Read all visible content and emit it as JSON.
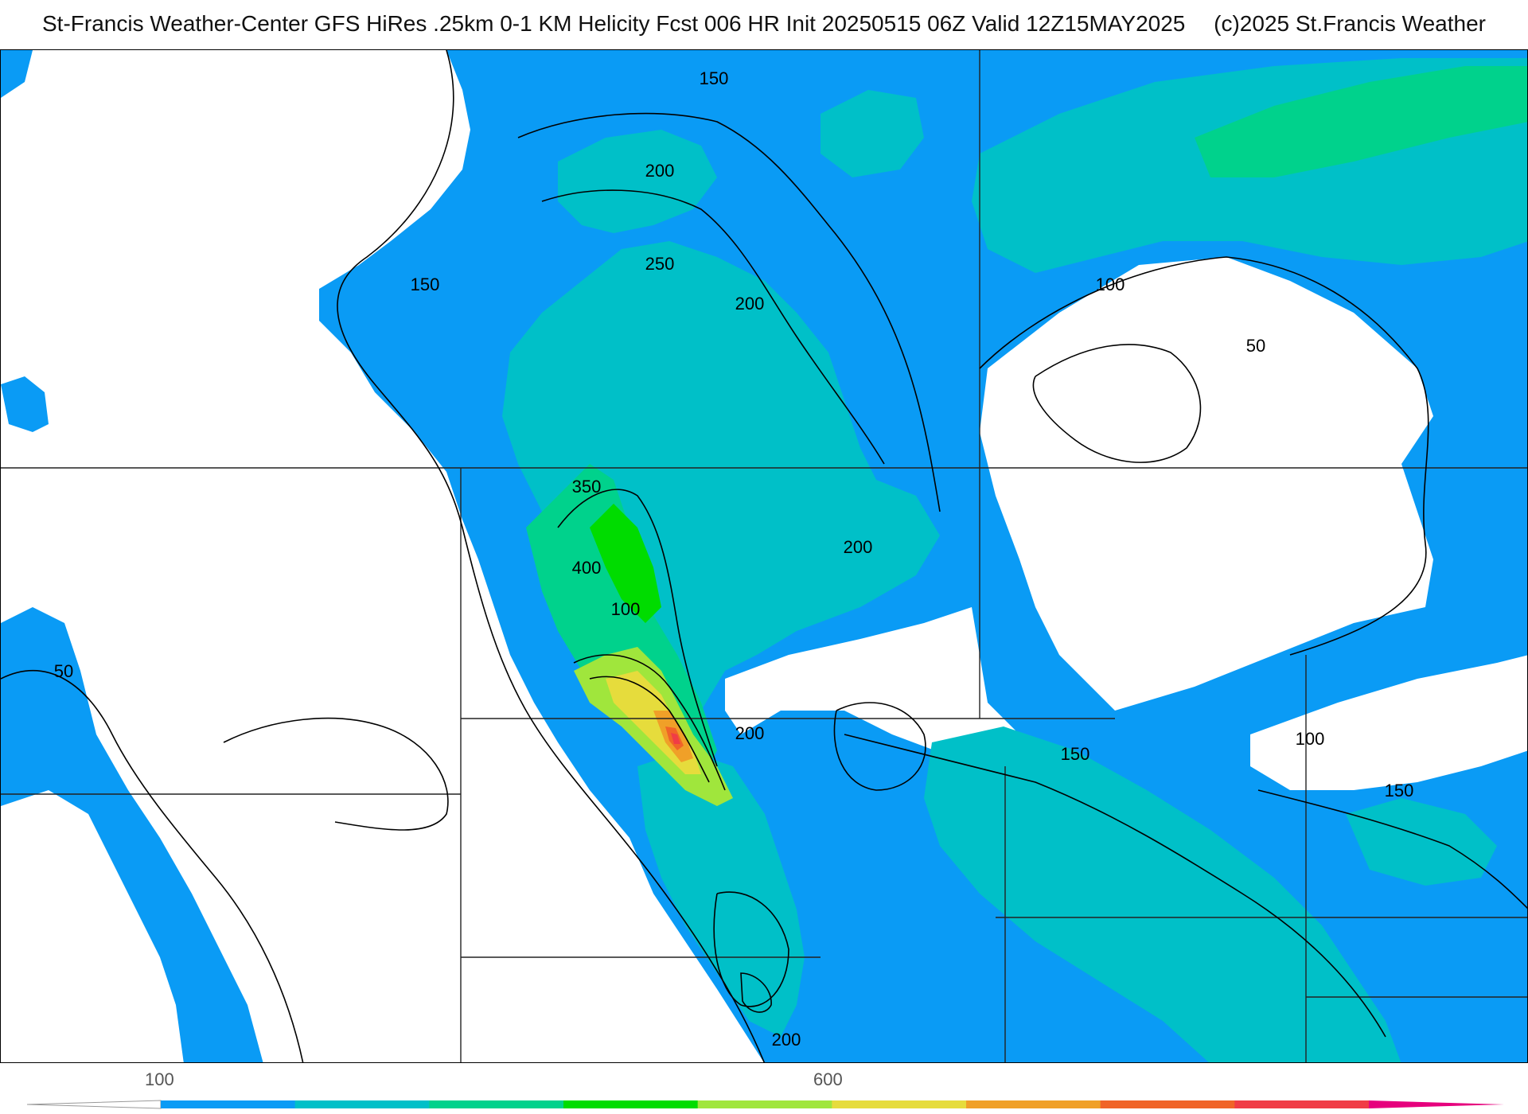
{
  "header": {
    "title": "St-Francis Weather-Center GFS HiRes .25km 0-1 KM Helicity Fcst 006 HR Init 20250515 06Z  Valid 12Z15MAY2025",
    "copyright": "(c)2025 St.Francis Weather"
  },
  "colorbar": {
    "tick_labels": [
      "100",
      "600"
    ],
    "colors": [
      "#0a9bf5",
      "#00c0c8",
      "#00d28c",
      "#00dc00",
      "#a0e63c",
      "#e6dc3c",
      "#f0a028",
      "#f06428",
      "#f03c46",
      "#e6007d"
    ]
  },
  "contour_labels": [
    "150",
    "200",
    "250",
    "200",
    "150",
    "100",
    "50",
    "350",
    "200",
    "400",
    "100",
    "200",
    "150",
    "100",
    "150",
    "50",
    "200"
  ],
  "fill_colors": {
    "blue": "#0a9bf5",
    "cyan": "#00c0c8",
    "teal": "#00d28c",
    "green": "#00dc00",
    "lime": "#a0e63c",
    "yellow": "#e6dc3c",
    "orange": "#f0a028",
    "red": "#f06428",
    "magenta": "#f03c46"
  }
}
